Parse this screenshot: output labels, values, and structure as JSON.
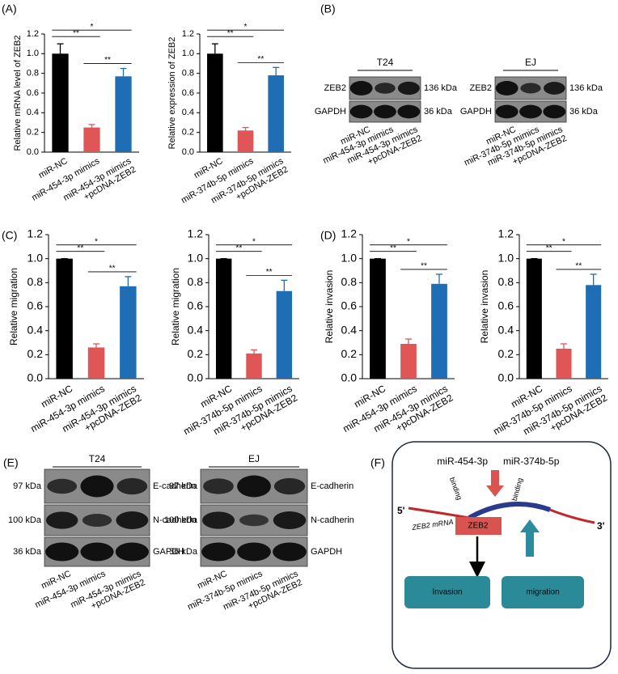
{
  "panel_labels": [
    "(A)",
    "(B)",
    "(C)",
    "(D)",
    "(E)",
    "(F)"
  ],
  "chart_data": [
    {
      "type": "bar",
      "ylabel": "Relative mRNA level of ZEB2",
      "categories": [
        "miR-NC",
        "miR-454-3p mimics",
        "miR-454-3p mimics\n+pcDNA-ZEB2"
      ],
      "values": [
        1.0,
        0.25,
        0.77
      ],
      "errors": [
        0.1,
        0.03,
        0.08
      ],
      "colors": [
        "#000000",
        "#e05656",
        "#1f6db4"
      ],
      "ylim": [
        0,
        1.2
      ],
      "yticks": [
        {
          "value": 0,
          "label": "0.0"
        },
        0.2,
        0.4,
        0.6,
        0.8,
        {
          "value": 1,
          "label": "1.0"
        },
        1.2
      ],
      "significance": [
        {
          "from": 0,
          "to": 1,
          "label": "**"
        },
        {
          "from": 0,
          "to": 2,
          "label": "*"
        },
        {
          "from": 1,
          "to": 2,
          "label": "**"
        }
      ]
    },
    {
      "type": "bar",
      "ylabel": "Relative expression of ZEB2",
      "categories": [
        "miR-NC",
        "miR-374b-5p mimics",
        "miR-374b-5p mimics\n+pcDNA-ZEB2"
      ],
      "values": [
        1.0,
        0.22,
        0.78
      ],
      "errors": [
        0.1,
        0.03,
        0.08
      ],
      "colors": [
        "#000000",
        "#e05656",
        "#1f6db4"
      ],
      "ylim": [
        0,
        1.2
      ],
      "yticks": [
        {
          "value": 0,
          "label": "0.0"
        },
        0.2,
        0.4,
        0.6,
        0.8,
        {
          "value": 1,
          "label": "1.0"
        },
        1.2
      ],
      "significance": [
        {
          "from": 0,
          "to": 1,
          "label": "**"
        },
        {
          "from": 0,
          "to": 2,
          "label": "*"
        },
        {
          "from": 1,
          "to": 2,
          "label": "**"
        }
      ]
    },
    {
      "type": "bar",
      "ylabel": "Relative migration",
      "categories": [
        "miR-NC",
        "miR-454-3p mimics",
        "miR-454-3p mimics\n+pcDNA-ZEB2"
      ],
      "values": [
        1.0,
        0.26,
        0.77
      ],
      "errors": [
        0,
        0.03,
        0.08
      ],
      "colors": [
        "#000000",
        "#e05656",
        "#1f6db4"
      ],
      "ylim": [
        0,
        1.2
      ],
      "yticks": [
        {
          "value": 0,
          "label": "0.0"
        },
        0.2,
        0.4,
        0.6,
        0.8,
        {
          "value": 1,
          "label": "1.0"
        },
        1.2
      ],
      "significance": [
        {
          "from": 0,
          "to": 1,
          "label": "**"
        },
        {
          "from": 0,
          "to": 2,
          "label": "*"
        },
        {
          "from": 1,
          "to": 2,
          "label": "**"
        }
      ]
    },
    {
      "type": "bar",
      "ylabel": "Relative migration",
      "categories": [
        "miR-NC",
        "miR-374b-5p mimics",
        "miR-374b-5p mimics\n+pcDNA-ZEB2"
      ],
      "values": [
        1.0,
        0.21,
        0.73
      ],
      "errors": [
        0,
        0.03,
        0.09
      ],
      "colors": [
        "#000000",
        "#e05656",
        "#1f6db4"
      ],
      "ylim": [
        0,
        1.2
      ],
      "yticks": [
        {
          "value": 0,
          "label": "0.0"
        },
        0.2,
        0.4,
        0.6,
        0.8,
        {
          "value": 1,
          "label": "1.0"
        },
        1.2
      ],
      "significance": [
        {
          "from": 0,
          "to": 1,
          "label": "**"
        },
        {
          "from": 0,
          "to": 2,
          "label": "*"
        },
        {
          "from": 1,
          "to": 2,
          "label": "**"
        }
      ]
    },
    {
      "type": "bar",
      "ylabel": "Relative invasion",
      "categories": [
        "miR-NC",
        "miR-454-3p mimics",
        "miR-454-3p mimics\n+pcDNA-ZEB2"
      ],
      "values": [
        1.0,
        0.29,
        0.79
      ],
      "errors": [
        0,
        0.04,
        0.08
      ],
      "colors": [
        "#000000",
        "#e05656",
        "#1f6db4"
      ],
      "ylim": [
        0,
        1.2
      ],
      "yticks": [
        {
          "value": 0,
          "label": "0.0"
        },
        0.2,
        0.4,
        0.6,
        0.8,
        {
          "value": 1,
          "label": "1.0"
        },
        1.2
      ],
      "significance": [
        {
          "from": 0,
          "to": 1,
          "label": "**"
        },
        {
          "from": 0,
          "to": 2,
          "label": "*"
        },
        {
          "from": 1,
          "to": 2,
          "label": "**"
        }
      ]
    },
    {
      "type": "bar",
      "ylabel": "Relative invasion",
      "categories": [
        "miR-NC",
        "miR-374b-5p mimics",
        "miR-374b-5p mimics\n+pcDNA-ZEB2"
      ],
      "values": [
        1.0,
        0.25,
        0.78
      ],
      "errors": [
        0,
        0.04,
        0.09
      ],
      "colors": [
        "#000000",
        "#e05656",
        "#1f6db4"
      ],
      "ylim": [
        0,
        1.2
      ],
      "yticks": [
        {
          "value": 0,
          "label": "0.0"
        },
        0.2,
        0.4,
        0.6,
        0.8,
        {
          "value": 1,
          "label": "1.0"
        },
        1.2
      ],
      "significance": [
        {
          "from": 0,
          "to": 1,
          "label": "**"
        },
        {
          "from": 0,
          "to": 2,
          "label": "*"
        },
        {
          "from": 1,
          "to": 2,
          "label": "**"
        }
      ]
    }
  ],
  "blots": [
    {
      "title": "T24",
      "row_labels": [
        "ZEB2",
        "GAPDH"
      ],
      "sizes": [
        "136 kDa",
        "36 kDa"
      ],
      "lanes": [
        "miR-NC",
        "miR-454-3p mimics",
        "miR-454-3p mimics\n+pcDNA-ZEB2"
      ]
    },
    {
      "title": "EJ",
      "row_labels": [
        "ZEB2",
        "GAPDH"
      ],
      "sizes": [
        "136 kDa",
        "36 kDa"
      ],
      "lanes": [
        "miR-NC",
        "miR-374b-5p mimics",
        "miR-374b-5p mimics\n+pcDNA-ZEB2"
      ]
    },
    {
      "title": "T24",
      "row_labels": [
        "E-cadherin",
        "N-cadherin",
        "GAPDH"
      ],
      "sizes": [
        "97 kDa",
        "100 kDa",
        "36 kDa"
      ],
      "lanes": [
        "miR-NC",
        "miR-454-3p mimics",
        "miR-454-3p mimics\n+pcDNA-ZEB2"
      ]
    },
    {
      "title": "EJ",
      "row_labels": [
        "E-cadherin",
        "N-cadherin",
        "GAPDH"
      ],
      "sizes": [
        "97 kDa",
        "100 kDa",
        "36 kDa"
      ],
      "lanes": [
        "miR-NC",
        "miR-374b-5p mimics",
        "miR-374b-5p mimics\n+pcDNA-ZEB2"
      ]
    }
  ],
  "diagram": {
    "mirnas": [
      "miR-454-3p",
      "miR-374b-5p"
    ],
    "binding_labels": [
      "binding",
      "binding"
    ],
    "five_prime": "5'",
    "three_prime": "3'",
    "mrna_label": "ZEB2 mRNA",
    "protein": "ZEB2",
    "outcomes": [
      "Invasion",
      "migration"
    ]
  }
}
